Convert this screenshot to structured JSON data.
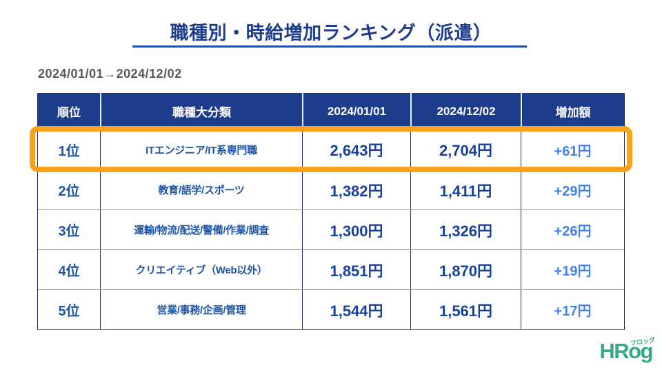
{
  "title": "職種別・時給増加ランキング（派遣）",
  "date_range": "2024/01/01→2024/12/02",
  "table": {
    "headers": [
      "順位",
      "職種大分類",
      "2024/01/01",
      "2024/12/02",
      "増加額"
    ],
    "rows": [
      {
        "rank": "1位",
        "category": "ITエンジニア/IT系専門職",
        "start": "2,643円",
        "end": "2,704円",
        "increase": "+61円",
        "highlighted": true
      },
      {
        "rank": "2位",
        "category": "教育/語学/スポーツ",
        "start": "1,382円",
        "end": "1,411円",
        "increase": "+29円",
        "highlighted": false
      },
      {
        "rank": "3位",
        "category": "運輸/物流/配送/警備/作業/調査",
        "start": "1,300円",
        "end": "1,326円",
        "increase": "+26円",
        "highlighted": false
      },
      {
        "rank": "4位",
        "category": "クリエイティブ（Web以外）",
        "start": "1,851円",
        "end": "1,870円",
        "increase": "+19円",
        "highlighted": false
      },
      {
        "rank": "5位",
        "category": "営業/事務/企画/管理",
        "start": "1,544円",
        "end": "1,561円",
        "increase": "+17円",
        "highlighted": false
      }
    ]
  },
  "chart_data": {
    "type": "table",
    "title": "職種別・時給増加ランキング（派遣）",
    "subtitle": "2024/01/01→2024/12/02",
    "columns": [
      "順位",
      "職種大分類",
      "2024/01/01",
      "2024/12/02",
      "増加額"
    ],
    "rows": [
      [
        "1位",
        "ITエンジニア/IT系専門職",
        2643,
        2704,
        61
      ],
      [
        "2位",
        "教育/語学/スポーツ",
        1382,
        1411,
        29
      ],
      [
        "3位",
        "運輸/物流/配送/警備/作業/調査",
        1300,
        1326,
        26
      ],
      [
        "4位",
        "クリエイティブ（Web以外）",
        1851,
        1870,
        19
      ],
      [
        "5位",
        "営業/事務/企画/管理",
        1544,
        1561,
        17
      ]
    ],
    "unit": "円",
    "highlighted_row_index": 0
  },
  "logo": {
    "text": "HRog",
    "subtext": "フロッグ"
  },
  "colors": {
    "title_navy": "#1e3d8f",
    "underline_blue": "#1f4da6",
    "date_gray": "#595959",
    "header_bg": "#1e3c8c",
    "header_text": "#ffffff",
    "rank_blue": "#1c55a8",
    "category_blue": "#1c55a8",
    "value_navy": "#17419e",
    "increase_blue": "#4283f0",
    "highlight_orange": "#f9a21b",
    "border_navy": "#2a2272",
    "row_divider_gray": "#999999",
    "logo_teal": "#39a78e"
  }
}
